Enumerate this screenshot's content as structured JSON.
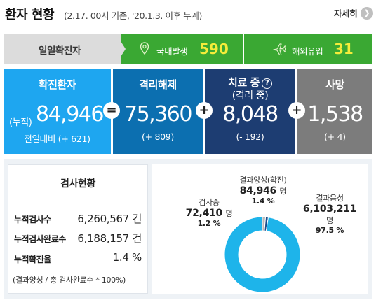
{
  "header": {
    "title": "환자 현황",
    "subtitle": "(2.17. 00시 기준, '20.1.3. 이후 누계)",
    "more_label": "자세히",
    "more_icon": "chevron-right-icon"
  },
  "daily": {
    "label": "일일확진자",
    "domestic": {
      "icon": "location-pin-icon",
      "label": "국내발생",
      "value": "590"
    },
    "overseas": {
      "icon": "airplane-icon",
      "label": "해외유입",
      "value": "31"
    }
  },
  "stats": {
    "confirmed": {
      "label": "확진환자",
      "prefix": "(누적)",
      "value": "84,946",
      "delta": "전일대비 (+ 621)"
    },
    "released": {
      "label": "격리해제",
      "value": "75,360",
      "delta": "(+ 809)"
    },
    "treating": {
      "label": "치료 중",
      "sublabel": "(격리 중)",
      "value": "8,048",
      "delta": "(- 192)"
    },
    "deaths": {
      "label": "사망",
      "value": "1,538",
      "delta": "(+ 4)"
    },
    "operators": {
      "equals": "=",
      "plus": "+"
    }
  },
  "testing": {
    "title": "검사현황",
    "rows": [
      {
        "label": "누적검사수",
        "value": "6,260,567 건"
      },
      {
        "label": "누적검사완료수",
        "value": "6,188,157 건"
      },
      {
        "label": "누적확진율",
        "value": "1.4 %"
      }
    ],
    "note": "(결과양성 / 총 검사완료수 * 100%)"
  },
  "chart_data": {
    "type": "pie",
    "categories": [
      "결과양성(확진)",
      "검사중",
      "결과음성"
    ],
    "values": [
      84946,
      72410,
      6103211
    ],
    "percentages": [
      1.4,
      1.2,
      97.5
    ],
    "value_labels": [
      "84,946",
      "72,410",
      "6,103,211"
    ],
    "unit": "명",
    "colors": [
      "#b8b8b8",
      "#1a4e8c",
      "#1eb4ea"
    ]
  }
}
